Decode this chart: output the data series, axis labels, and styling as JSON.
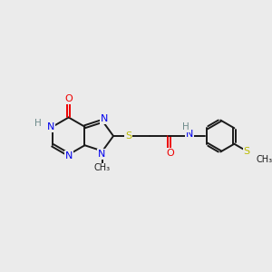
{
  "background_color": "#ebebeb",
  "bond_color": "#1a1a1a",
  "N_color": "#0000ee",
  "O_color": "#ee0000",
  "S_color": "#bbbb00",
  "H_color": "#6e8b8b",
  "figsize": [
    3.0,
    3.0
  ],
  "dpi": 100,
  "xlim": [
    0,
    12
  ],
  "ylim": [
    0,
    12
  ]
}
